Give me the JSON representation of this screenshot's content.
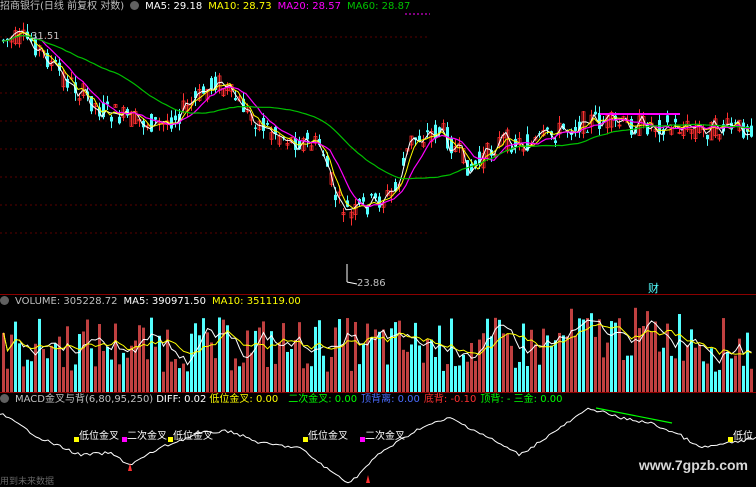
{
  "main": {
    "title": "招商银行(日线 前复权 对数)",
    "ma5": "MA5: 29.18",
    "ma10": "MA10: 28.73",
    "ma20": "MA20: 28.57",
    "ma60": "MA60: 28.87",
    "high_label": "31.51",
    "low_label": "23.86",
    "cai_label": "财"
  },
  "volume": {
    "title": "VOLUME: 305228.72",
    "ma5": "MA5: 390971.50",
    "ma10": "MA10: 351119.00"
  },
  "macd": {
    "title": "MACD金叉与背(6,80,95,250)",
    "diff": "DIFF: 0.02",
    "low_cross": "低位金叉: 0.00",
    "second_cross": "二次金叉: 0.00",
    "top_div": "顶背离: 0.00",
    "bottom_div": "底背: -0.10",
    "top_back": "顶背: - 三金: 0.00",
    "signals": [
      {
        "label": "低位金叉",
        "color": "#ffff00"
      },
      {
        "label": "二次金叉",
        "color": "#ff00ff"
      },
      {
        "label": "低位金叉",
        "color": "#ffff00"
      },
      {
        "label": "低位金叉",
        "color": "#ffff00"
      },
      {
        "label": "二次金叉",
        "color": "#ff00ff"
      },
      {
        "label": "低位",
        "color": "#ffff00"
      }
    ]
  },
  "colors": {
    "up": "#ff3030",
    "down": "#54ffff",
    "ma5": "#ffffff",
    "ma10": "#ffff00",
    "ma20": "#ff00ff",
    "ma60": "#00c000"
  },
  "watermark": "www.7gpzb.com",
  "footer": "用到未来数据"
}
